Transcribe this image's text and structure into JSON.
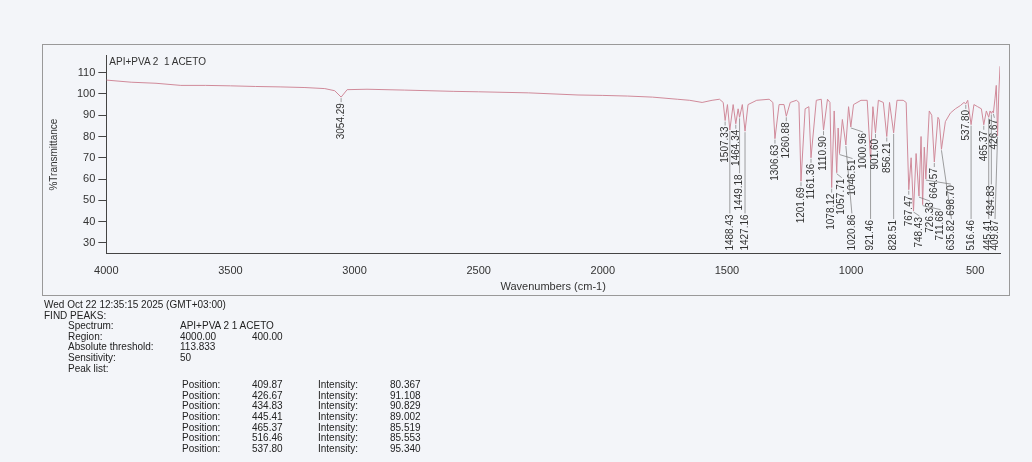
{
  "chart_data": {
    "type": "line",
    "title": "API+PVA 2  1 ACETO",
    "xlabel": "Wavenumbers (cm-1)",
    "ylabel": "%Transmittance",
    "color": "#d08a9a",
    "xlim": [
      4000,
      400
    ],
    "xticks": [
      4000,
      3500,
      3000,
      2500,
      2000,
      1500,
      1000,
      500
    ],
    "ylim": [
      25,
      118
    ],
    "yticks": [
      30,
      40,
      50,
      60,
      70,
      80,
      90,
      100,
      110
    ],
    "grid": false,
    "legend": false,
    "marker": "none",
    "x": [
      4000,
      3900,
      3800,
      3700,
      3600,
      3500,
      3400,
      3300,
      3200,
      3120,
      3080,
      3054.29,
      3030,
      2950,
      2800,
      2600,
      2500,
      2300,
      2100,
      2000,
      1900,
      1800,
      1700,
      1650,
      1600,
      1560,
      1530,
      1515,
      1507.33,
      1498,
      1488.43,
      1475,
      1464.34,
      1455,
      1449.18,
      1438,
      1427.16,
      1415,
      1380,
      1330,
      1315,
      1306.63,
      1290,
      1270,
      1260.88,
      1245,
      1220,
      1210,
      1201.69,
      1185,
      1170,
      1161.36,
      1140,
      1120,
      1110.9,
      1095,
      1085,
      1078.12,
      1068,
      1057.71,
      1052,
      1046.51,
      1035,
      1020.86,
      1010,
      1000.96,
      990,
      960,
      935,
      921.46,
      912,
      901.6,
      890,
      870,
      856.21,
      845,
      828.51,
      815,
      790,
      778,
      767.47,
      758,
      748.43,
      738,
      726.33,
      718,
      711.68,
      705,
      698.7,
      685,
      675,
      664.57,
      650,
      645,
      635.82,
      620,
      600,
      580,
      560,
      545,
      537.8,
      530,
      516.46,
      505,
      490,
      475,
      465.37,
      455,
      445.41,
      440,
      434.83,
      430,
      426.67,
      420,
      415,
      409.87,
      405,
      400
    ],
    "values": [
      106.5,
      105.5,
      105,
      104,
      104,
      103.8,
      103.5,
      103.3,
      103,
      102.5,
      101.5,
      98.5,
      102,
      102.2,
      101.8,
      101.2,
      101,
      100.5,
      99.5,
      99.3,
      99,
      98.5,
      97.5,
      97,
      96,
      97,
      97.5,
      96,
      87.5,
      95,
      83,
      95,
      86,
      93,
      89,
      95,
      82.5,
      95,
      97,
      97.5,
      96,
      79,
      95,
      95,
      89.5,
      96,
      97,
      96,
      59,
      93,
      94,
      70,
      97,
      97.5,
      83,
      97.5,
      96,
      56,
      92,
      63,
      84,
      72,
      88,
      76,
      94,
      84.5,
      95,
      97,
      97,
      69,
      94,
      81.7,
      97,
      96,
      80,
      96,
      81.7,
      97,
      97,
      96,
      55,
      70,
      45,
      72,
      52,
      80,
      48,
      75,
      60,
      92,
      90,
      68,
      89,
      88,
      74,
      87,
      91,
      93,
      94.5,
      96,
      95.34,
      97,
      85.553,
      95,
      94,
      93,
      85.519,
      92,
      89.002,
      92,
      90.829,
      92,
      91.108,
      98,
      104,
      80.367,
      100,
      113
    ],
    "annotations": [
      {
        "text": "3054.29",
        "x": 3054.29,
        "y": 98.5
      },
      {
        "text": "1507.33",
        "x": 1507.33,
        "y": 87.5
      },
      {
        "text": "1488.43",
        "x": 1488.43,
        "y": 83
      },
      {
        "text": "1464.34",
        "x": 1464.34,
        "y": 86
      },
      {
        "text": "1449.18",
        "x": 1449.18,
        "y": 89
      },
      {
        "text": "1427.16",
        "x": 1427.16,
        "y": 82.5
      },
      {
        "text": "1306.63",
        "x": 1306.63,
        "y": 79
      },
      {
        "text": "1260.88",
        "x": 1260.88,
        "y": 89.5
      },
      {
        "text": "1201.69",
        "x": 1201.69,
        "y": 59
      },
      {
        "text": "1161.36",
        "x": 1161.36,
        "y": 70
      },
      {
        "text": "1110.90",
        "x": 1110.9,
        "y": 83
      },
      {
        "text": "1078.12",
        "x": 1078.12,
        "y": 56
      },
      {
        "text": "1057.71",
        "x": 1057.71,
        "y": 63
      },
      {
        "text": "1046.51",
        "x": 1046.51,
        "y": 72
      },
      {
        "text": "1020.86",
        "x": 1020.86,
        "y": 76
      },
      {
        "text": "1000.96",
        "x": 1000.96,
        "y": 84.5
      },
      {
        "text": "921.46",
        "x": 921.46,
        "y": 69
      },
      {
        "text": "901.60",
        "x": 901.6,
        "y": 81.7
      },
      {
        "text": "856.21",
        "x": 856.21,
        "y": 80
      },
      {
        "text": "828.51",
        "x": 828.51,
        "y": 81.7
      },
      {
        "text": "767.47",
        "x": 767.47,
        "y": 55
      },
      {
        "text": "748.43",
        "x": 748.43,
        "y": 45
      },
      {
        "text": "726.33",
        "x": 726.33,
        "y": 52
      },
      {
        "text": "711.68",
        "x": 711.68,
        "y": 48
      },
      {
        "text": "698.70",
        "x": 698.7,
        "y": 60
      },
      {
        "text": "664.57",
        "x": 664.57,
        "y": 68
      },
      {
        "text": "635.82",
        "x": 635.82,
        "y": 74
      },
      {
        "text": "537.80",
        "x": 537.8,
        "y": 95.34
      },
      {
        "text": "516.46",
        "x": 516.46,
        "y": 85.553
      },
      {
        "text": "465.37",
        "x": 465.37,
        "y": 85.519
      },
      {
        "text": "445.41",
        "x": 445.41,
        "y": 89.002
      },
      {
        "text": "434.83",
        "x": 434.83,
        "y": 90.829
      },
      {
        "text": "426.67",
        "x": 426.67,
        "y": 91.108
      },
      {
        "text": "409.87",
        "x": 409.87,
        "y": 80.367
      },
      "Wed Oct 22 12:35:15 2025 (GMT+03:00)",
      "FIND PEAKS:",
      "Spectrum:",
      "API+PVA 2  1 ACETO",
      "Region:",
      "4000.00",
      "400.00",
      "Absolute threshold:",
      "113.833",
      "Sensitivity:",
      "50",
      "Peak list:",
      "Position:",
      "409.87",
      "Intensity:",
      "80.367",
      "Position:",
      "426.67",
      "Intensity:",
      "91.108",
      "Position:",
      "434.83",
      "Intensity:",
      "90.829",
      "Position:",
      "445.41",
      "Intensity:",
      "89.002",
      "Position:",
      "465.37",
      "Intensity:",
      "85.519",
      "Position:",
      "516.46",
      "Intensity:",
      "85.553",
      "Position:",
      "537.80",
      "Intensity:",
      "95.340"
    ]
  }
}
